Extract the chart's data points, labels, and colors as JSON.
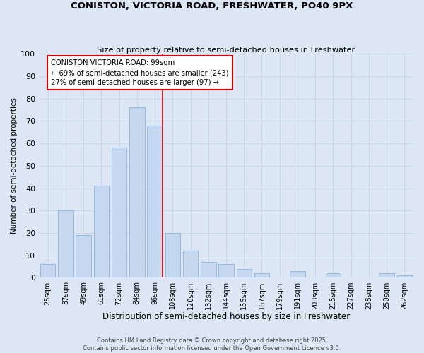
{
  "title1": "CONISTON, VICTORIA ROAD, FRESHWATER, PO40 9PX",
  "title2": "Size of property relative to semi-detached houses in Freshwater",
  "xlabel": "Distribution of semi-detached houses by size in Freshwater",
  "ylabel": "Number of semi-detached properties",
  "categories": [
    "25sqm",
    "37sqm",
    "49sqm",
    "61sqm",
    "72sqm",
    "84sqm",
    "96sqm",
    "108sqm",
    "120sqm",
    "132sqm",
    "144sqm",
    "155sqm",
    "167sqm",
    "179sqm",
    "191sqm",
    "203sqm",
    "215sqm",
    "227sqm",
    "238sqm",
    "250sqm",
    "262sqm"
  ],
  "values": [
    6,
    30,
    19,
    41,
    58,
    76,
    68,
    20,
    12,
    7,
    6,
    4,
    2,
    0,
    3,
    0,
    2,
    0,
    0,
    2,
    1
  ],
  "bar_color": "#c5d8f0",
  "bar_edge_color": "#8ab4d8",
  "property_line_index": 6,
  "annotation_title": "CONISTON VICTORIA ROAD: 99sqm",
  "annotation_line1": "← 69% of semi-detached houses are smaller (243)",
  "annotation_line2": "27% of semi-detached houses are larger (97) →",
  "annotation_box_color": "#ffffff",
  "annotation_box_edge": "#cc0000",
  "line_color": "#cc0000",
  "grid_color": "#c8d4e8",
  "background_color": "#dce6f5",
  "footer1": "Contains HM Land Registry data © Crown copyright and database right 2025.",
  "footer2": "Contains public sector information licensed under the Open Government Licence v3.0.",
  "ylim": [
    0,
    100
  ],
  "yticks": [
    0,
    10,
    20,
    30,
    40,
    50,
    60,
    70,
    80,
    90,
    100
  ]
}
